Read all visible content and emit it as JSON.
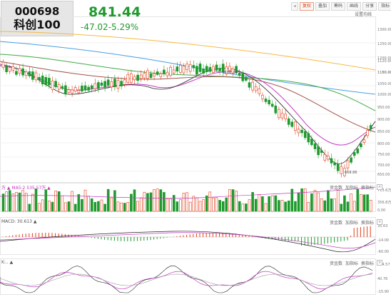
{
  "stock": {
    "code": "000698",
    "name": "科创100",
    "price": "841.44",
    "change": "-47.02",
    "change_pct": "-5.29%",
    "color_down": "#1f9a2e",
    "color_up": "#e0401b"
  },
  "toolbar": {
    "items": [
      "复权",
      "叠加",
      "筹码",
      "画线",
      "分享",
      "指标",
      "全屏"
    ],
    "selected_label": "复权",
    "settings_label": "设置均线"
  },
  "price_axis": {
    "ticks": [
      "1300.00",
      "1250.00",
      "1200.00",
      "1150.00",
      "1120.00",
      "1100.00",
      "1050.00",
      "1000.00",
      "950.00",
      "900.00",
      "850.00",
      "800.00",
      "750.00",
      "700.00",
      "650.00"
    ],
    "min_marker": "668.86",
    "high_marker": "1102.14"
  },
  "volume_panel": {
    "label": "万 ▲ MA5:2 535.57万 ▲",
    "ticks": [
      "713.6万",
      "356.8万",
      "0.00"
    ],
    "buttons": [
      "资金数",
      "加指标",
      "换指标"
    ]
  },
  "macd_panel": {
    "label": "MACD: 30.613 ▲",
    "ticks": [
      "35.63",
      "-14.00",
      "-60.00"
    ],
    "buttons": [
      "资金数",
      "加指标",
      "换指标"
    ]
  },
  "kdj_panel": {
    "label": "K:.. ▲",
    "ticks": [
      "114.57",
      "40.76",
      "-15.90"
    ],
    "buttons": [
      "资金数",
      "加指标",
      "换指标"
    ]
  },
  "colors": {
    "ma_yellow": "#f5b942",
    "ma_blue": "#4a9ee0",
    "ma_green": "#3faa46",
    "ma_brown": "#a0524c",
    "ma_magenta": "#c23cc2",
    "ma_black": "#222222"
  }
}
